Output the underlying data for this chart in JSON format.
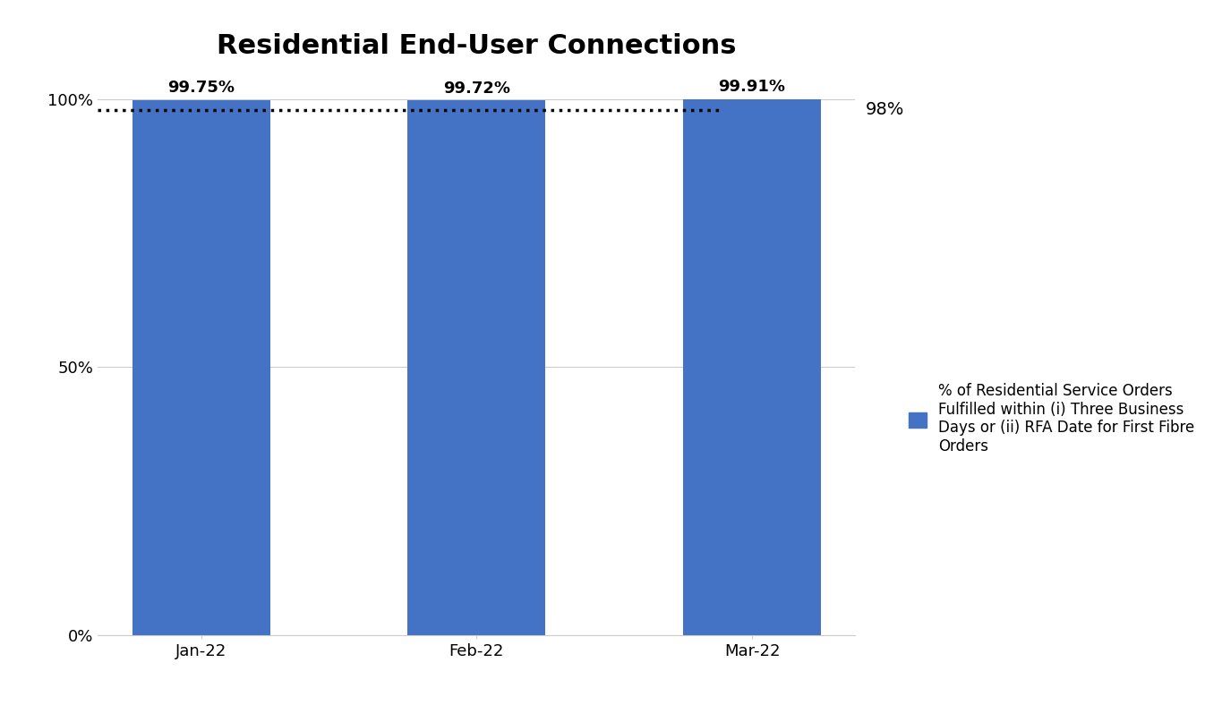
{
  "title": "Residential End-User Connections",
  "categories": [
    "Jan-22",
    "Feb-22",
    "Mar-22"
  ],
  "values": [
    99.75,
    99.72,
    99.91
  ],
  "bar_labels": [
    "99.75%",
    "99.72%",
    "99.91%"
  ],
  "bar_color": "#4472C4",
  "ylim": [
    0,
    105
  ],
  "yticks": [
    0,
    50,
    100
  ],
  "ytick_labels": [
    "0%",
    "50%",
    "100%"
  ],
  "threshold_value": 98,
  "threshold_label": "98%",
  "threshold_linestyle": "dotted",
  "threshold_color": "black",
  "threshold_linewidth": 2.5,
  "grid_color": "#CCCCCC",
  "background_color": "#FFFFFF",
  "title_fontsize": 22,
  "bar_label_fontsize": 13,
  "tick_fontsize": 13,
  "legend_label": "% of Residential Service Orders\nFulfilled within (i) Three Business\nDays or (ii) RFA Date for First Fibre\nOrders",
  "legend_fontsize": 12,
  "bar_width": 0.5
}
